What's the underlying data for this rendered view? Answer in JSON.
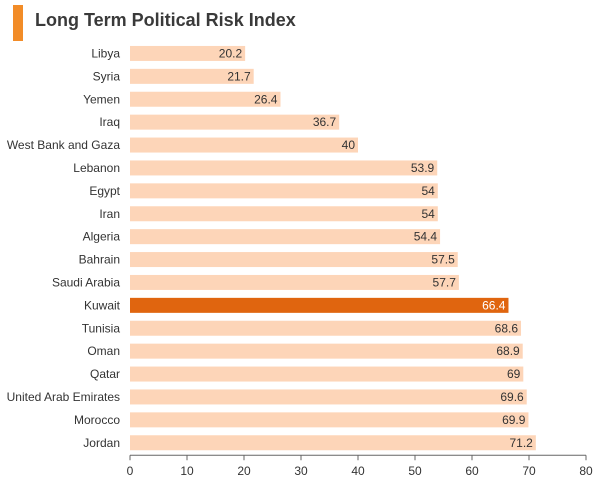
{
  "chart_data": {
    "type": "bar",
    "orientation": "horizontal",
    "title": "Long Term Political Risk Index",
    "categories": [
      "Libya",
      "Syria",
      "Yemen",
      "Iraq",
      "West Bank and Gaza",
      "Lebanon",
      "Egypt",
      "Iran",
      "Algeria",
      "Bahrain",
      "Saudi Arabia",
      "Kuwait",
      "Tunisia",
      "Oman",
      "Qatar",
      "United Arab Emirates",
      "Morocco",
      "Jordan"
    ],
    "values": [
      20.2,
      21.7,
      26.4,
      36.7,
      40,
      53.9,
      54,
      54,
      54.4,
      57.5,
      57.7,
      66.4,
      68.6,
      68.9,
      69,
      69.6,
      69.9,
      71.2
    ],
    "value_labels": [
      "20.2",
      "21.7",
      "26.4",
      "36.7",
      "40",
      "53.9",
      "54",
      "54",
      "54.4",
      "57.5",
      "57.7",
      "66.4",
      "68.6",
      "68.9",
      "69",
      "69.6",
      "69.9",
      "71.2"
    ],
    "highlight": "Kuwait",
    "xlim": [
      0,
      80
    ],
    "xticks": [
      "0",
      "10",
      "20",
      "30",
      "40",
      "50",
      "60",
      "70",
      "80"
    ],
    "xlabel": "",
    "ylabel": "",
    "grid": false,
    "colors": {
      "bar": "#fdd5b8",
      "highlight": "#e0650f",
      "title_accent": "#f28c28"
    }
  }
}
